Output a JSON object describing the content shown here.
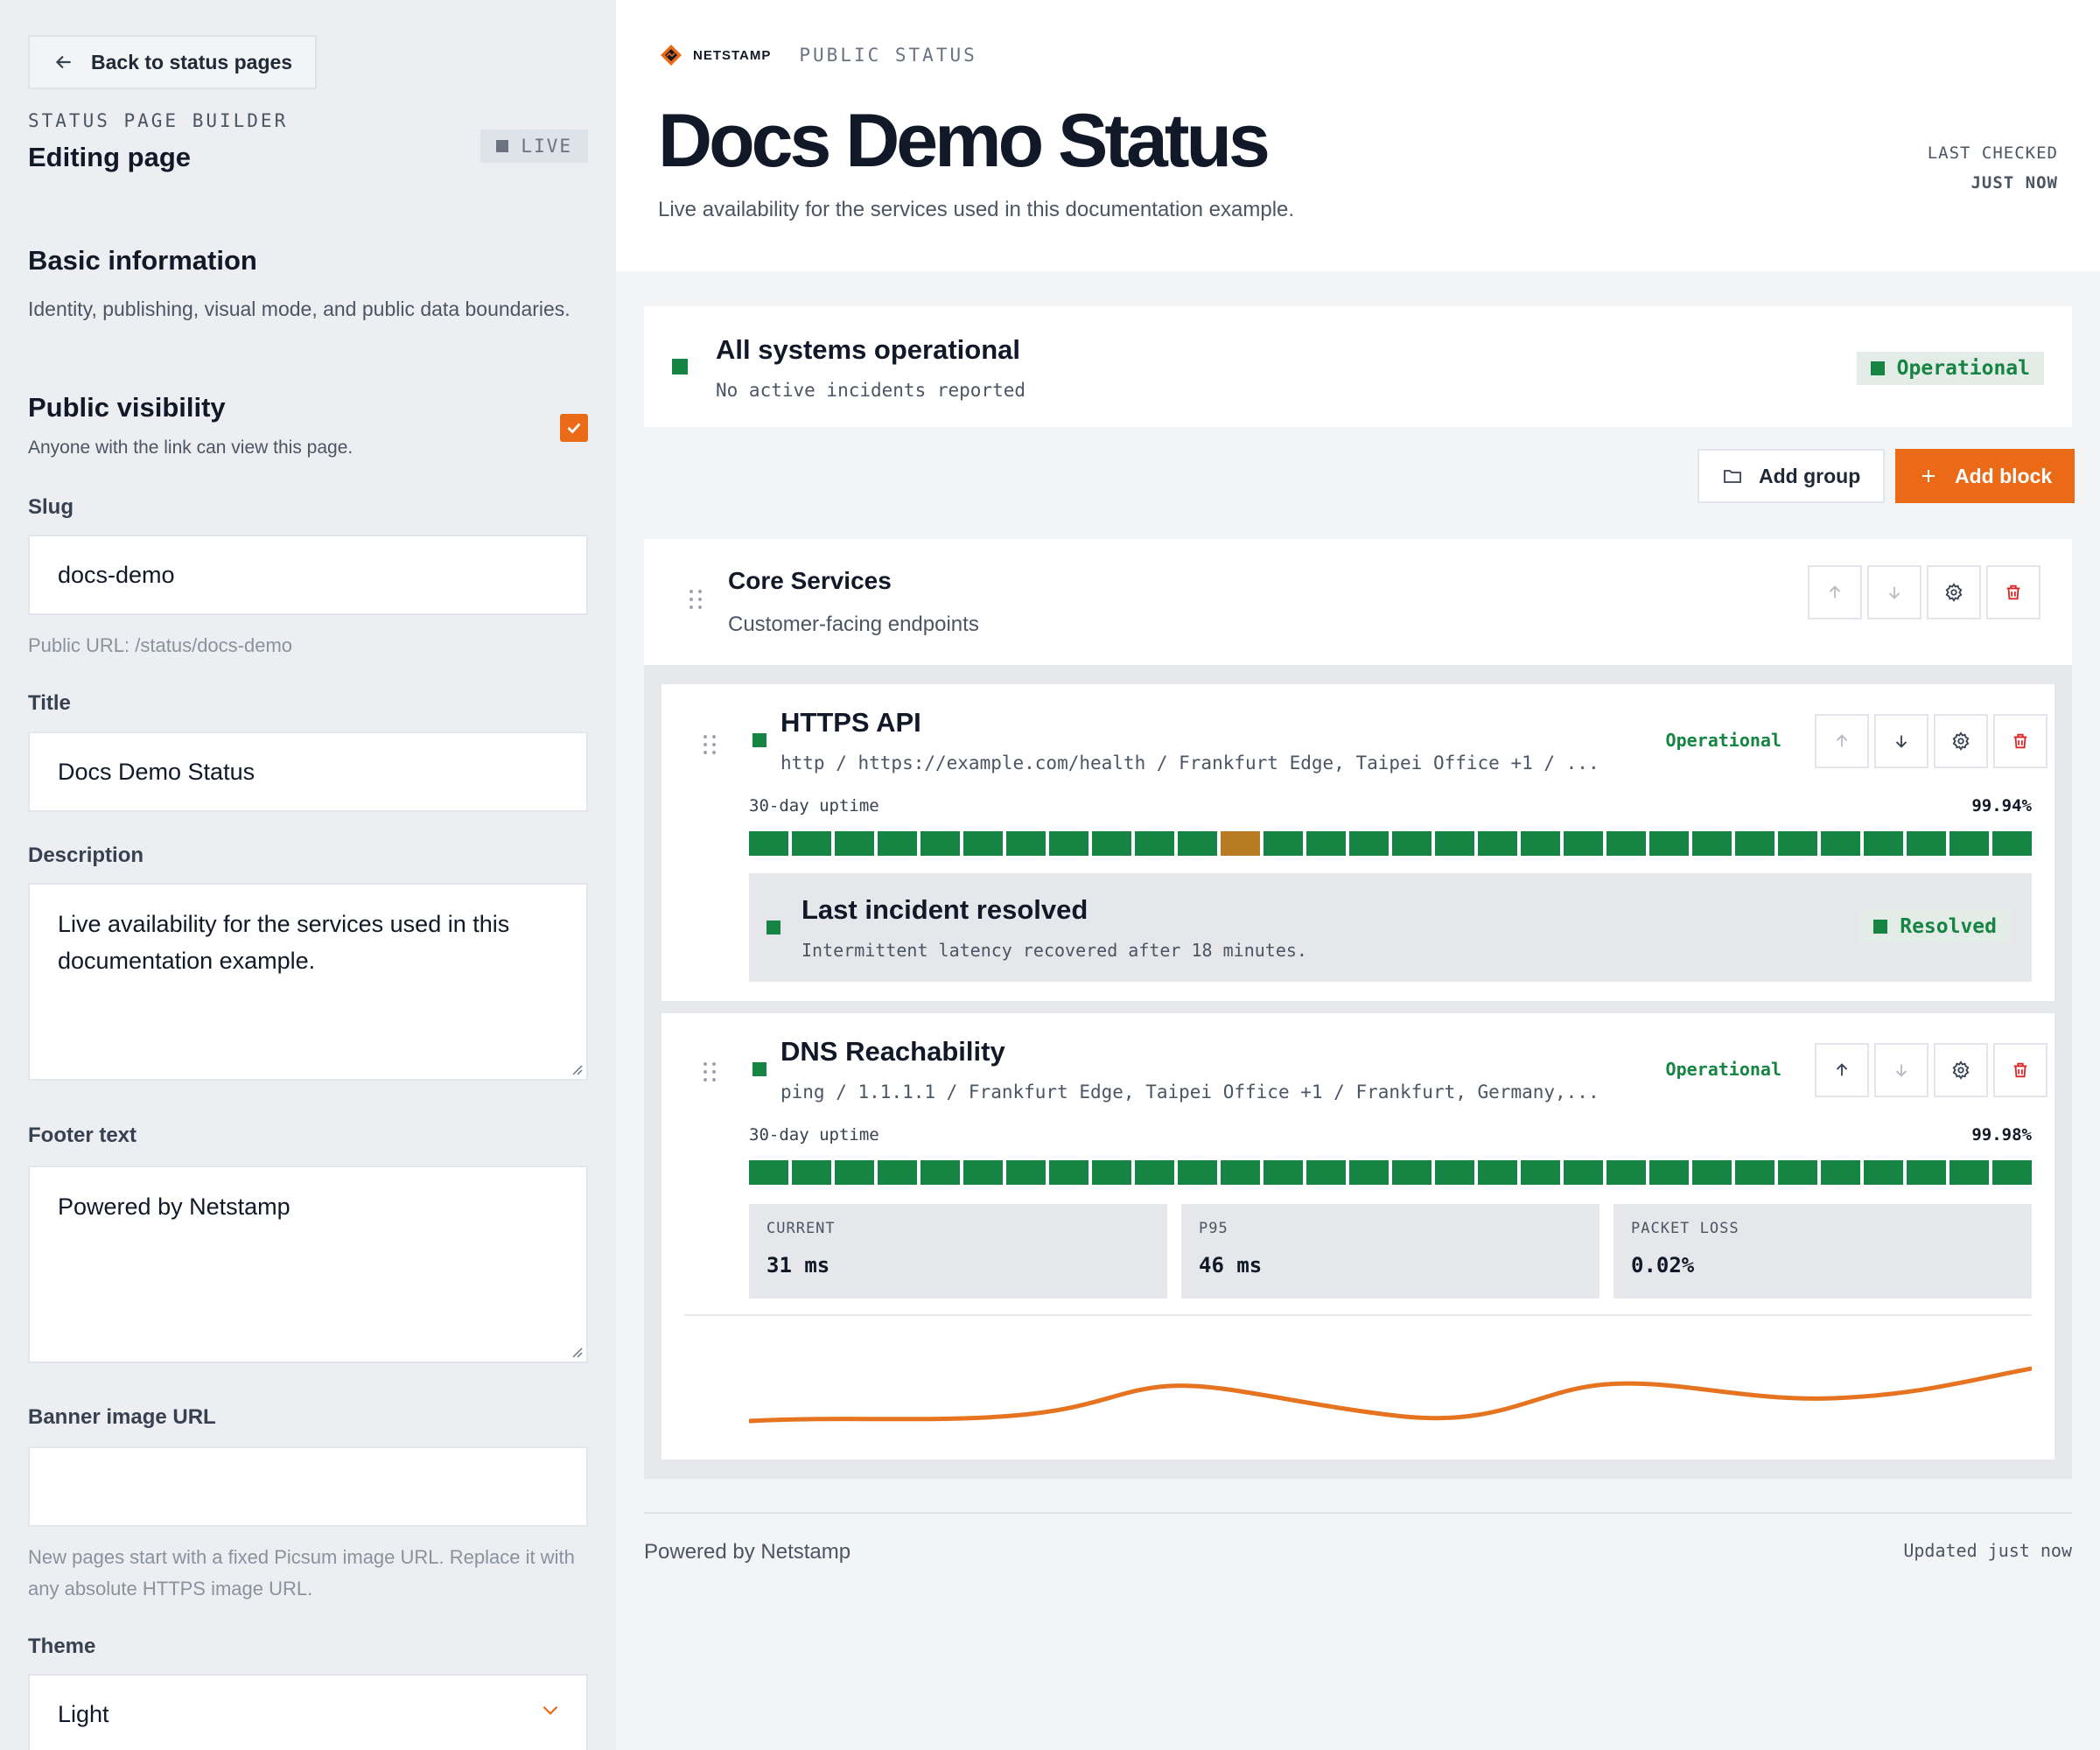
{
  "sidebar": {
    "back_label": "Back to status pages",
    "eyebrow": "STATUS PAGE BUILDER",
    "title": "Editing page",
    "live_badge": "LIVE",
    "basic_title": "Basic information",
    "basic_sub": "Identity, publishing, visual mode, and public data boundaries.",
    "visibility_title": "Public visibility",
    "visibility_sub": "Anyone with the link can view this page.",
    "visibility_checked": true,
    "slug_label": "Slug",
    "slug_value": "docs-demo",
    "public_url": "Public URL: /status/docs-demo",
    "title_label": "Title",
    "title_value": "Docs Demo Status",
    "description_label": "Description",
    "description_value": "Live availability for the services used in this documentation example.",
    "footer_label": "Footer text",
    "footer_value": "Powered by Netstamp",
    "banner_label": "Banner image URL",
    "banner_value": "",
    "banner_help": "New pages start with a fixed Picsum image URL. Replace it with any absolute HTTPS image URL.",
    "theme_label": "Theme",
    "theme_value": "Light"
  },
  "header": {
    "brand": "NETSTAMP",
    "brand_sub": "PUBLIC STATUS",
    "title": "Docs Demo Status",
    "description": "Live availability for the services used in this documentation example.",
    "last_checked_label": "LAST CHECKED",
    "last_checked_value": "JUST NOW"
  },
  "overall": {
    "title": "All systems operational",
    "subtitle": "No active incidents reported",
    "status": "Operational"
  },
  "toolbar": {
    "add_group": "Add group",
    "add_block": "Add block"
  },
  "group": {
    "name": "Core Services",
    "description": "Customer-facing endpoints"
  },
  "monitors": [
    {
      "name": "HTTPS API",
      "target": "http / https://example.com/health / Frankfurt Edge, Taipei Office +1 / ...",
      "status": "Operational",
      "uptime_label": "30-day uptime",
      "uptime_value": "99.94%",
      "days": [
        "up",
        "up",
        "up",
        "up",
        "up",
        "up",
        "up",
        "up",
        "up",
        "up",
        "up",
        "degraded",
        "up",
        "up",
        "up",
        "up",
        "up",
        "up",
        "up",
        "up",
        "up",
        "up",
        "up",
        "up",
        "up",
        "up",
        "up",
        "up",
        "up",
        "up"
      ],
      "incident": {
        "title": "Last incident resolved",
        "detail": "Intermittent latency recovered after 18 minutes.",
        "status": "Resolved"
      }
    },
    {
      "name": "DNS Reachability",
      "target": "ping / 1.1.1.1 / Frankfurt Edge, Taipei Office +1 / Frankfurt, Germany,...",
      "status": "Operational",
      "uptime_label": "30-day uptime",
      "uptime_value": "99.98%",
      "days": [
        "up",
        "up",
        "up",
        "up",
        "up",
        "up",
        "up",
        "up",
        "up",
        "up",
        "up",
        "up",
        "up",
        "up",
        "up",
        "up",
        "up",
        "up",
        "up",
        "up",
        "up",
        "up",
        "up",
        "up",
        "up",
        "up",
        "up",
        "up",
        "up",
        "up"
      ],
      "metrics": [
        {
          "label": "CURRENT",
          "value": "31 ms"
        },
        {
          "label": "P95",
          "value": "46 ms"
        },
        {
          "label": "PACKET LOSS",
          "value": "0.02%"
        }
      ]
    }
  ],
  "footer": {
    "text": "Powered by Netstamp",
    "updated": "Updated just now"
  },
  "colors": {
    "accent": "#ea6a17",
    "operational": "#168442",
    "degraded": "#b97b21",
    "danger": "#dc2626"
  }
}
